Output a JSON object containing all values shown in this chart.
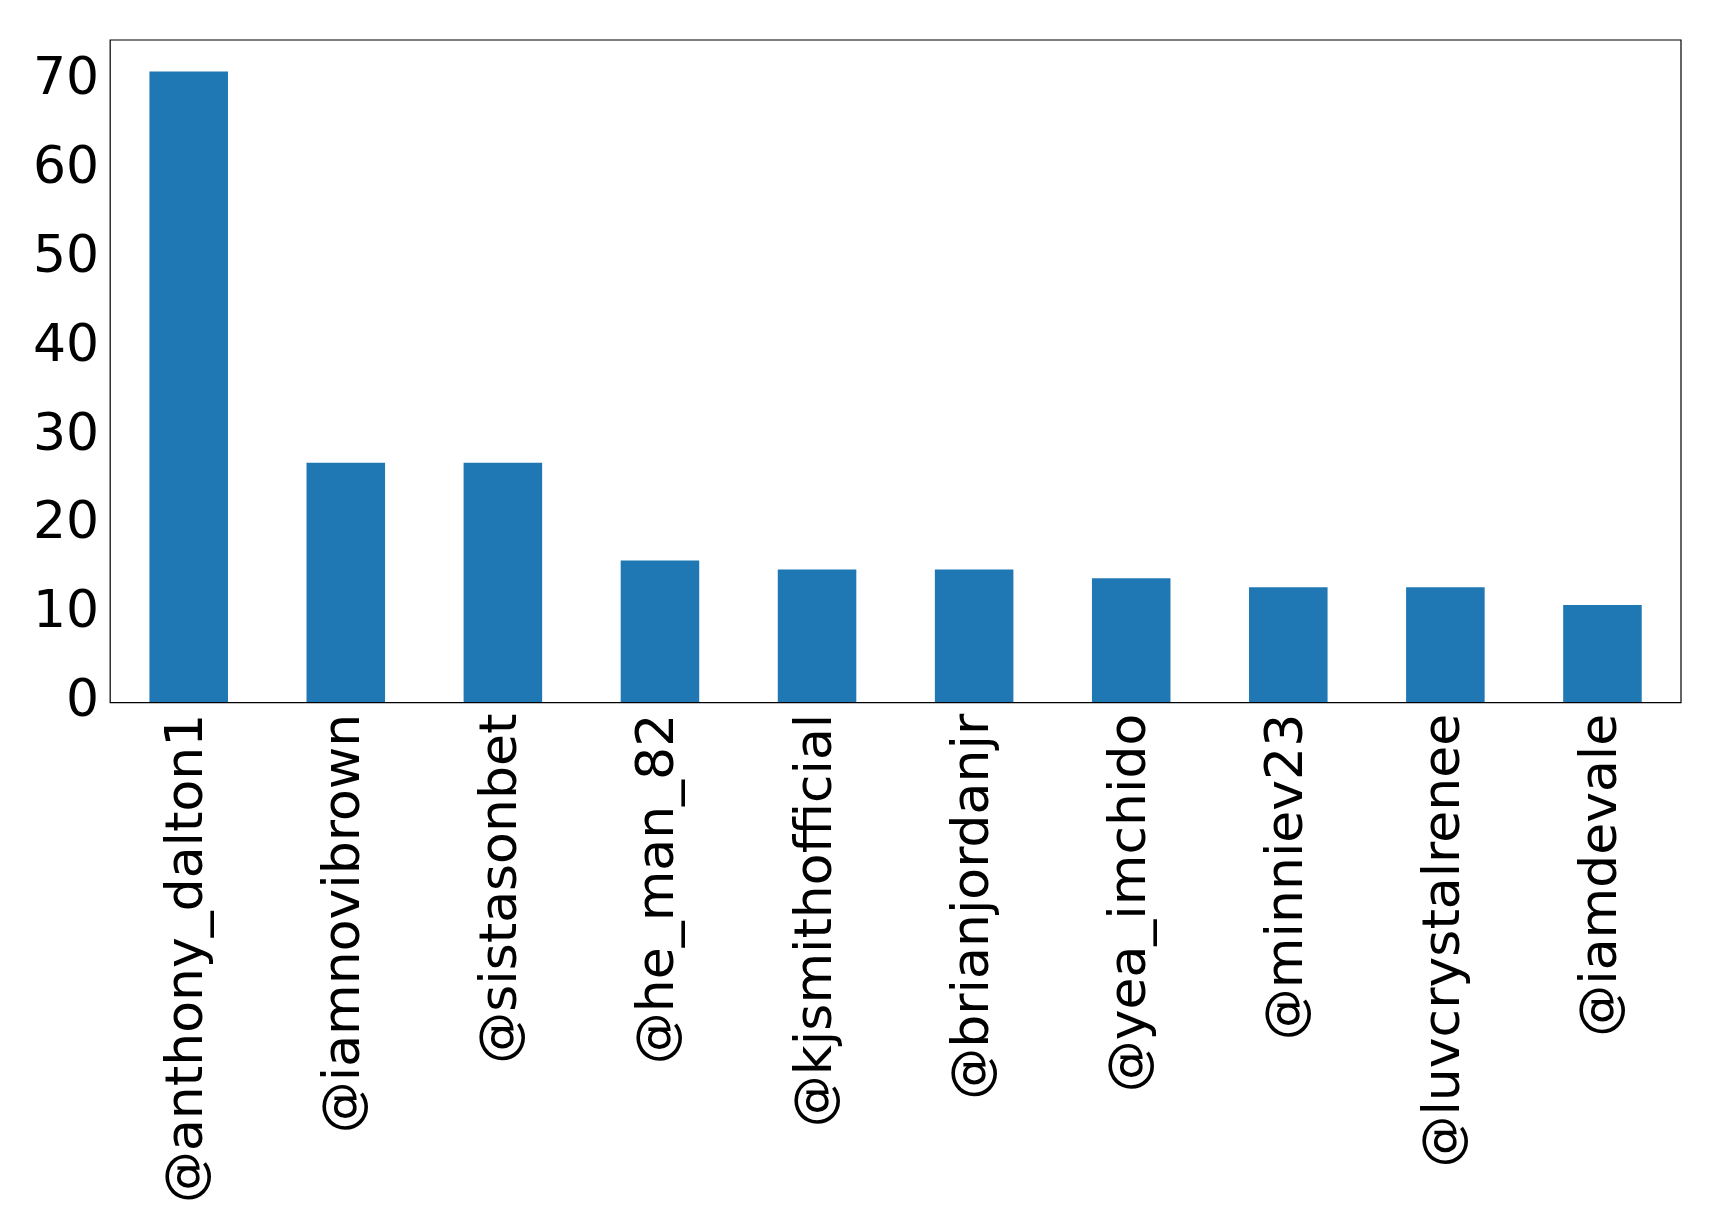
{
  "chart_data": {
    "type": "bar",
    "categories": [
      "@anthony_dalton1",
      "@iamnovibrown",
      "@sistasonbet",
      "@he_man_82",
      "@kjsmithofficial",
      "@brianjordanjr",
      "@yea_imchido",
      "@minniev23",
      "@luvcrystalrenee",
      "@iamdevale"
    ],
    "values": [
      71,
      27,
      27,
      16,
      15,
      15,
      14,
      13,
      13,
      11
    ],
    "color": "#1f77b4",
    "ylim": [
      0,
      74.55
    ],
    "yticks": [
      0,
      10,
      20,
      30,
      40,
      50,
      60,
      70
    ],
    "grid": false,
    "legend": false
  }
}
